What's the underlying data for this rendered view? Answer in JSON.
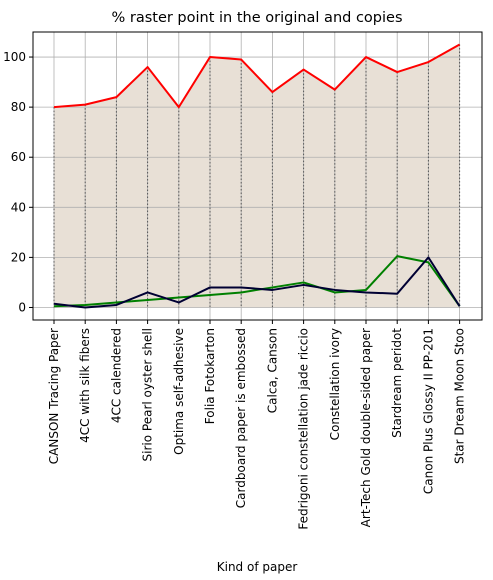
{
  "chart_data": {
    "type": "line",
    "title": "% raster point in the original and copies",
    "xlabel": "Kind of paper",
    "ylabel": "",
    "ylim": [
      -5,
      110
    ],
    "yticks": [
      0,
      20,
      40,
      60,
      80,
      100
    ],
    "grid": true,
    "legend": "none",
    "fill_between": {
      "color": "#e8e0d6",
      "upper": "red",
      "lower": "zero"
    },
    "categories": [
      "CANSON Tracing Paper",
      "4CC with silk fibers",
      "4CC calendered",
      "Sirio Pearl oyster shell",
      "Optima self-adhesive",
      "Folia Fotokarton",
      "Cardboard paper is embossed",
      "Calca, Canson",
      "Fedrigoni constellation jade riccio",
      "Constellation ivory",
      "Art-Tech Gold double-sided paper",
      "Stardream peridot",
      "Canon Plus Glossy II PP-201",
      "Star Dream Moon Stoo"
    ],
    "series": [
      {
        "color": "#ff0000",
        "values": [
          80,
          81,
          84,
          96,
          80,
          100,
          99,
          86,
          95,
          87,
          100,
          94,
          98,
          105
        ]
      },
      {
        "color": "#008000",
        "values": [
          0.5,
          1,
          2,
          3,
          4,
          5,
          6,
          8,
          10,
          6,
          7,
          20.5,
          18,
          0.5
        ]
      },
      {
        "color": "#000033",
        "values": [
          1.5,
          0,
          1,
          6,
          2,
          8,
          8,
          7,
          9,
          7,
          6,
          5.5,
          20,
          0.5
        ]
      }
    ]
  }
}
